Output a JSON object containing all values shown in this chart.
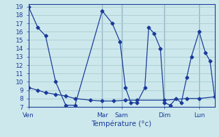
{
  "xlabel": "Température (°c)",
  "background_color": "#cce8ec",
  "grid_color": "#aacccc",
  "line_color": "#1a3a9a",
  "ylim": [
    7,
    19.3
  ],
  "xlim": [
    0,
    240
  ],
  "yticks": [
    7,
    8,
    9,
    10,
    11,
    12,
    13,
    14,
    15,
    16,
    17,
    18,
    19
  ],
  "xtick_positions": [
    0,
    95,
    120,
    175,
    220
  ],
  "xtick_labels": [
    "Ven",
    "Mar",
    "Sam",
    "Dim",
    "Lun"
  ],
  "vlines_x": [
    95,
    120,
    175,
    220
  ],
  "series1_x": [
    0,
    12,
    22,
    35,
    48,
    60,
    95,
    108,
    118,
    125,
    132,
    140,
    150,
    155,
    162,
    170,
    175,
    183,
    190,
    197,
    204,
    210,
    220,
    228,
    234,
    240
  ],
  "series1_y": [
    19,
    16.5,
    15.5,
    10.0,
    7.2,
    7.2,
    18.5,
    17.0,
    14.8,
    9.3,
    7.5,
    7.5,
    9.3,
    16.5,
    15.8,
    14.0,
    7.5,
    7.2,
    8.0,
    7.5,
    10.5,
    13.0,
    16.0,
    13.5,
    12.5,
    8.2
  ],
  "series2_x": [
    0,
    12,
    22,
    35,
    48,
    60,
    80,
    95,
    110,
    125,
    140,
    175,
    204,
    220,
    240
  ],
  "series2_y": [
    9.3,
    9.0,
    8.7,
    8.5,
    8.3,
    8.0,
    7.8,
    7.7,
    7.7,
    7.8,
    7.8,
    7.8,
    8.0,
    8.0,
    8.2
  ]
}
